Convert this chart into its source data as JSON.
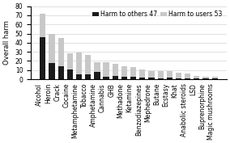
{
  "categories": [
    "Alcohol",
    "Heroin",
    "Crack",
    "Cocaine",
    "Metamphetamine",
    "Tobacco",
    "Amphetamine",
    "Cannabis",
    "GHB",
    "Methadone",
    "Ketamine",
    "Benzodiazepines",
    "Mephedrone",
    "Butane",
    "Ecstasy",
    "Khat",
    "Anabolic steroids",
    "LSD",
    "Buprenorphine",
    "Magic mushrooms"
  ],
  "harm_to_others": [
    46,
    18,
    14,
    11,
    5,
    5,
    8,
    3,
    4,
    3,
    3,
    2,
    2,
    1,
    2,
    1,
    1,
    1,
    1,
    1
  ],
  "harm_to_users": [
    26,
    32,
    31,
    17,
    24,
    22,
    11,
    16,
    13,
    11,
    10,
    9,
    7,
    8,
    7,
    6,
    5,
    3,
    2,
    2
  ],
  "color_others": "#1a1a1a",
  "color_users": "#c8c8c8",
  "ylabel": "Overall harm",
  "ylim": [
    0,
    80
  ],
  "yticks": [
    0,
    10,
    20,
    30,
    40,
    50,
    60,
    70,
    80
  ],
  "legend_others": "Harm to others 47",
  "legend_users": "Harm to users 53",
  "label_fontsize": 6,
  "tick_fontsize": 5.5
}
